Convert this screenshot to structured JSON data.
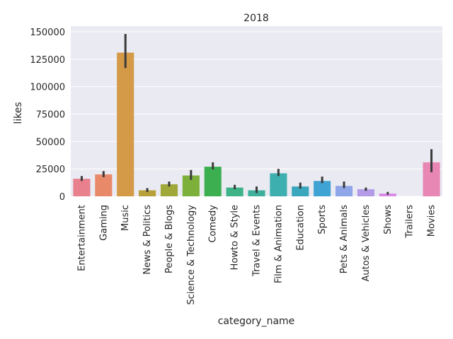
{
  "chart_data": {
    "type": "bar",
    "title": "2018",
    "xlabel": "category_name",
    "ylabel": "likes",
    "ylim": [
      0,
      150000
    ],
    "yticks": [
      0,
      25000,
      50000,
      75000,
      100000,
      125000,
      150000
    ],
    "ytick_labels": [
      "0",
      "25000",
      "50000",
      "75000",
      "100000",
      "125000",
      "150000"
    ],
    "grid": true,
    "categories": [
      "Entertainment",
      "Gaming",
      "Music",
      "News & Politics",
      "People & Blogs",
      "Science & Technology",
      "Comedy",
      "Howto & Style",
      "Travel & Events",
      "Film & Animation",
      "Education",
      "Sports",
      "Pets & Animals",
      "Autos & Vehicles",
      "Shows",
      "Trailers",
      "Movies"
    ],
    "values": [
      16000,
      20000,
      131000,
      5500,
      11000,
      19000,
      27000,
      8000,
      5500,
      21000,
      9000,
      14000,
      9500,
      6500,
      2500,
      0,
      31000
    ],
    "ci_low": [
      14000,
      17500,
      117000,
      4000,
      9000,
      15000,
      24500,
      6500,
      3000,
      18500,
      7000,
      12000,
      7500,
      5000,
      1500,
      0,
      22000
    ],
    "ci_high": [
      18500,
      23000,
      148000,
      7500,
      13500,
      24000,
      31000,
      10500,
      9000,
      25000,
      12500,
      18000,
      13500,
      8000,
      4000,
      0,
      43000
    ],
    "colors": [
      "#e8808e",
      "#e8896a",
      "#d59a48",
      "#b8a03a",
      "#a0a83a",
      "#7cb03a",
      "#3cb050",
      "#3db387",
      "#3eb09c",
      "#3cafae",
      "#3ba7bd",
      "#3fa4d3",
      "#8fa6e8",
      "#b49be8",
      "#d98ae6",
      "#e882d0",
      "#e886b4"
    ]
  }
}
